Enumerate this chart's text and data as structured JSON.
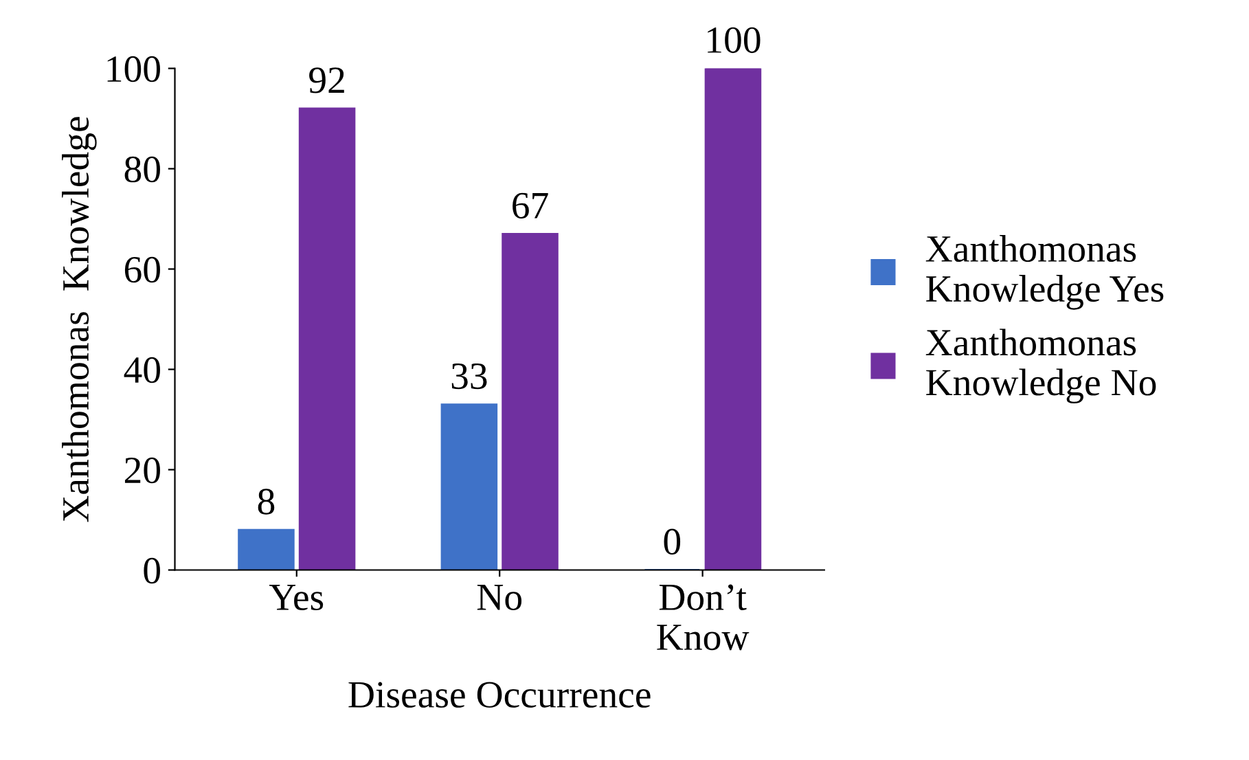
{
  "chart_data": {
    "type": "bar",
    "categories": [
      "Yes",
      "No",
      "Don’t\nKnow"
    ],
    "xlabel": "Disease Occurrence",
    "ylabel": "Xanthomonas  Knowledge",
    "series": [
      {
        "name": "Xanthomonas\nKnowledge Yes",
        "color": "#3f72c8",
        "values": [
          8,
          33,
          0
        ]
      },
      {
        "name": "Xanthomonas\nKnowledge No",
        "color": "#7030a0",
        "values": [
          92,
          67,
          100
        ]
      }
    ],
    "ylim": [
      0,
      100
    ],
    "yticks": [
      0,
      20,
      40,
      60,
      80,
      100
    ],
    "grid": false,
    "legend": "right",
    "data_labels": true
  }
}
